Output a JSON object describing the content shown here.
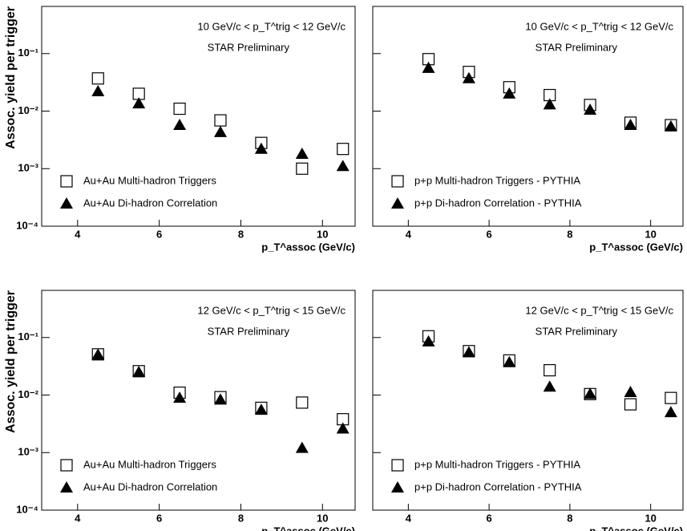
{
  "chart_data": [
    {
      "type": "scatter",
      "title": "10 GeV/c < p_T^trig < 12 GeV/c",
      "subtitle": "STAR Preliminary",
      "y_label": "Assoc. yield per trigger",
      "x_label": "p_T^assoc (GeV/c)",
      "log_y": true,
      "xlim": [
        3.12,
        10.8
      ],
      "ylim": [
        0.0001,
        0.66
      ],
      "xticks": [
        4,
        6,
        8,
        10
      ],
      "yticks": [
        {
          "value": 0.0001,
          "label": "10⁻⁴"
        },
        {
          "value": 0.001,
          "label": "10⁻³"
        },
        {
          "value": 0.01,
          "label": "10⁻²"
        },
        {
          "value": 0.1,
          "label": "10⁻¹"
        }
      ],
      "x": [
        4.5,
        5.5,
        6.5,
        7.5,
        8.5,
        9.5,
        10.5
      ],
      "series": [
        {
          "name": "Au+Au Multi-hadron Triggers",
          "color": "#000000",
          "marker": "open-square",
          "values": [
            0.037,
            0.02,
            0.011,
            0.0069,
            0.0028,
            0.001,
            0.0022
          ]
        },
        {
          "name": "Au+Au Di-hadron Correlation",
          "color": "#000000",
          "marker": "triangle",
          "values": [
            0.022,
            0.0135,
            0.0057,
            0.0043,
            0.0022,
            0.0018,
            0.0011
          ]
        }
      ]
    },
    {
      "type": "scatter",
      "title": "10 GeV/c < p_T^trig < 12 GeV/c",
      "subtitle": "STAR Preliminary",
      "x_label": "p_T^assoc (GeV/c)",
      "log_y": true,
      "xlim": [
        3.12,
        10.8
      ],
      "ylim": [
        0.0001,
        0.66
      ],
      "xticks": [
        4,
        6,
        8,
        10
      ],
      "yticks": [
        0.0001,
        0.001,
        0.01,
        0.1
      ],
      "x": [
        4.5,
        5.5,
        6.5,
        7.5,
        8.5,
        9.5,
        10.5
      ],
      "series": [
        {
          "name": "p+p Multi-hadron Triggers - PYTHIA",
          "color": "#000000",
          "marker": "open-square",
          "values": [
            0.08,
            0.048,
            0.026,
            0.019,
            0.0128,
            0.0063,
            0.0057
          ]
        },
        {
          "name": "p+p Di-hadron Correlation - PYTHIA",
          "color": "#000000",
          "marker": "triangle",
          "values": [
            0.056,
            0.037,
            0.02,
            0.013,
            0.0105,
            0.0057,
            0.0054
          ]
        }
      ]
    },
    {
      "type": "scatter",
      "title": "12 GeV/c < p_T^trig < 15 GeV/c",
      "subtitle": "STAR Preliminary",
      "y_label": "Assoc. yield per trigger",
      "x_label": "p_T^assoc (GeV/c)",
      "log_y": true,
      "xlim": [
        3.12,
        10.8
      ],
      "ylim": [
        0.0001,
        0.66
      ],
      "xticks": [
        4,
        6,
        8,
        10
      ],
      "yticks": [
        {
          "value": 0.0001,
          "label": "10⁻⁴"
        },
        {
          "value": 0.001,
          "label": "10⁻³"
        },
        {
          "value": 0.01,
          "label": "10⁻²"
        },
        {
          "value": 0.1,
          "label": "10⁻¹"
        }
      ],
      "x": [
        4.5,
        5.5,
        6.5,
        7.5,
        8.5,
        9.5,
        10.5
      ],
      "series": [
        {
          "name": "Au+Au Multi-hadron Triggers",
          "color": "#000000",
          "marker": "open-square",
          "values": [
            0.051,
            0.026,
            0.011,
            0.0092,
            0.006,
            0.0074,
            0.0038
          ]
        },
        {
          "name": "Au+Au Di-hadron Correlation",
          "color": "#000000",
          "marker": "triangle",
          "values": [
            0.05,
            0.025,
            0.0089,
            0.0083,
            0.0055,
            0.0012,
            0.0026
          ]
        }
      ]
    },
    {
      "type": "scatter",
      "title": "12 GeV/c < p_T^trig < 15 GeV/c",
      "subtitle": "STAR Preliminary",
      "x_label": "p_T^assoc (GeV/c)",
      "log_y": true,
      "xlim": [
        3.12,
        10.8
      ],
      "ylim": [
        0.0001,
        0.66
      ],
      "xticks": [
        4,
        6,
        8,
        10
      ],
      "yticks": [
        0.0001,
        0.001,
        0.01,
        0.1
      ],
      "x": [
        4.5,
        5.5,
        6.5,
        7.5,
        8.5,
        9.5,
        10.5
      ],
      "series": [
        {
          "name": "p+p Multi-hadron Triggers - PYTHIA",
          "color": "#000000",
          "marker": "open-square",
          "values": [
            0.105,
            0.058,
            0.04,
            0.027,
            0.0104,
            0.0069,
            0.0089
          ]
        },
        {
          "name": "p+p Di-hadron Correlation - PYTHIA",
          "color": "#000000",
          "marker": "triangle",
          "values": [
            0.085,
            0.055,
            0.037,
            0.0139,
            0.0104,
            0.0112,
            0.005
          ]
        }
      ]
    }
  ]
}
